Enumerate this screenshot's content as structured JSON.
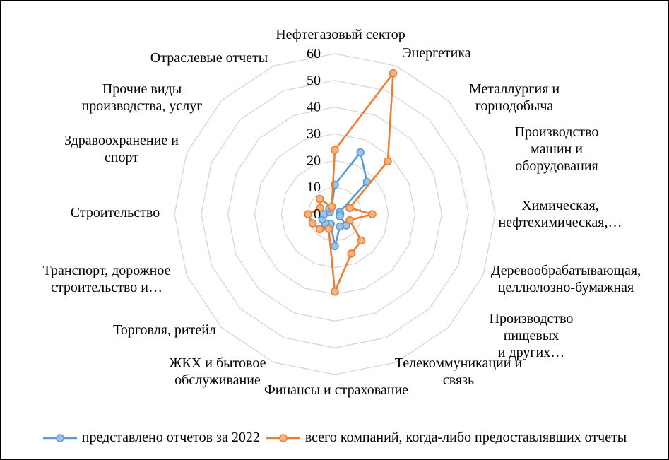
{
  "chart_data": {
    "type": "radar",
    "title": "",
    "categories": [
      "Нефтегазовый сектор",
      "Энергетика",
      "Металлургия и\nгорнодобыча",
      "Производство машин и\nоборудования",
      "Химическая,\nнефтехимическая,…",
      "Деревообрабатывающая,\nцеллюлозно-бумажная",
      "Производство пищевых\nи других…",
      "Телекоммуникации и\nсвязь",
      "Финансы и страхование",
      "ЖКХ и бытовое\nобслуживание",
      "Торговля, ритейл",
      "Транспорт, дорожное\nстроительство и…",
      "Строительство",
      "Здравоохранение и\nспорт",
      "Прочие виды\nпроизводства, услуг",
      "Отраслевые отчеты"
    ],
    "series": [
      {
        "name": "представлено отчетов за 2022",
        "color": "#5B9BD5",
        "marker_fill": "#9DC3E6",
        "values": [
          11,
          25,
          17,
          2,
          2,
          2,
          6,
          5,
          12,
          4,
          5,
          5,
          4,
          2,
          3,
          3
        ]
      },
      {
        "name": "всего компаний, когда-либо предоставлявших отчеты",
        "color": "#ED7D31",
        "marker_fill": "#F4B183",
        "values": [
          24,
          57,
          28,
          6,
          14,
          6,
          14,
          16,
          29,
          6,
          8,
          9,
          10,
          6,
          8,
          3
        ]
      }
    ],
    "axis": {
      "min": 0,
      "max": 60,
      "step": 10,
      "tick_labels": [
        "0",
        "10",
        "20",
        "30",
        "40",
        "50",
        "60"
      ]
    },
    "grid": {
      "style": "polygon-rings",
      "color": "#D6D6D6"
    },
    "legend_position": "bottom"
  }
}
